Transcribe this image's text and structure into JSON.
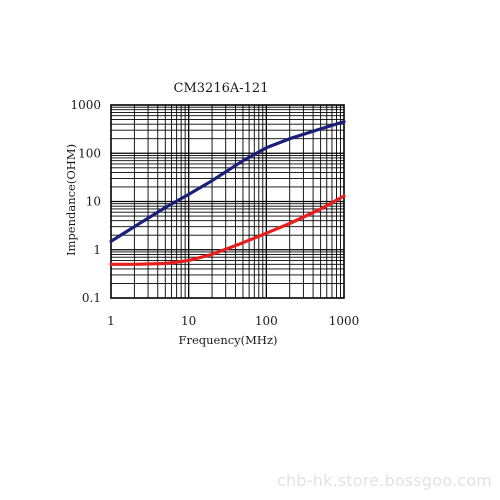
{
  "chart_data": {
    "type": "line",
    "title": "CM3216A-121",
    "xlabel": "Frequency(MHz)",
    "ylabel": "Impendance(OHM)",
    "xscale": "log",
    "yscale": "log",
    "xlim": [
      1,
      1000
    ],
    "ylim": [
      0.1,
      1000
    ],
    "grid": true,
    "x_ticks": [
      "1",
      "10",
      "100",
      "1000"
    ],
    "y_ticks": [
      "1000",
      "100",
      "10",
      "1",
      "0.1"
    ],
    "series": [
      {
        "color": "#1a1f7a",
        "x": [
          1,
          2,
          5,
          10,
          20,
          50,
          100,
          200,
          500,
          1000
        ],
        "y": [
          1.5,
          3,
          7.5,
          14,
          27,
          70,
          130,
          200,
          320,
          450
        ]
      },
      {
        "color": "#e81e1e",
        "x": [
          1,
          2,
          5,
          10,
          20,
          50,
          100,
          200,
          500,
          1000
        ],
        "y": [
          0.5,
          0.5,
          0.52,
          0.6,
          0.8,
          1.4,
          2.2,
          3.5,
          7,
          13
        ]
      }
    ]
  },
  "watermark": "chb-hk.store.bossgoo.com"
}
